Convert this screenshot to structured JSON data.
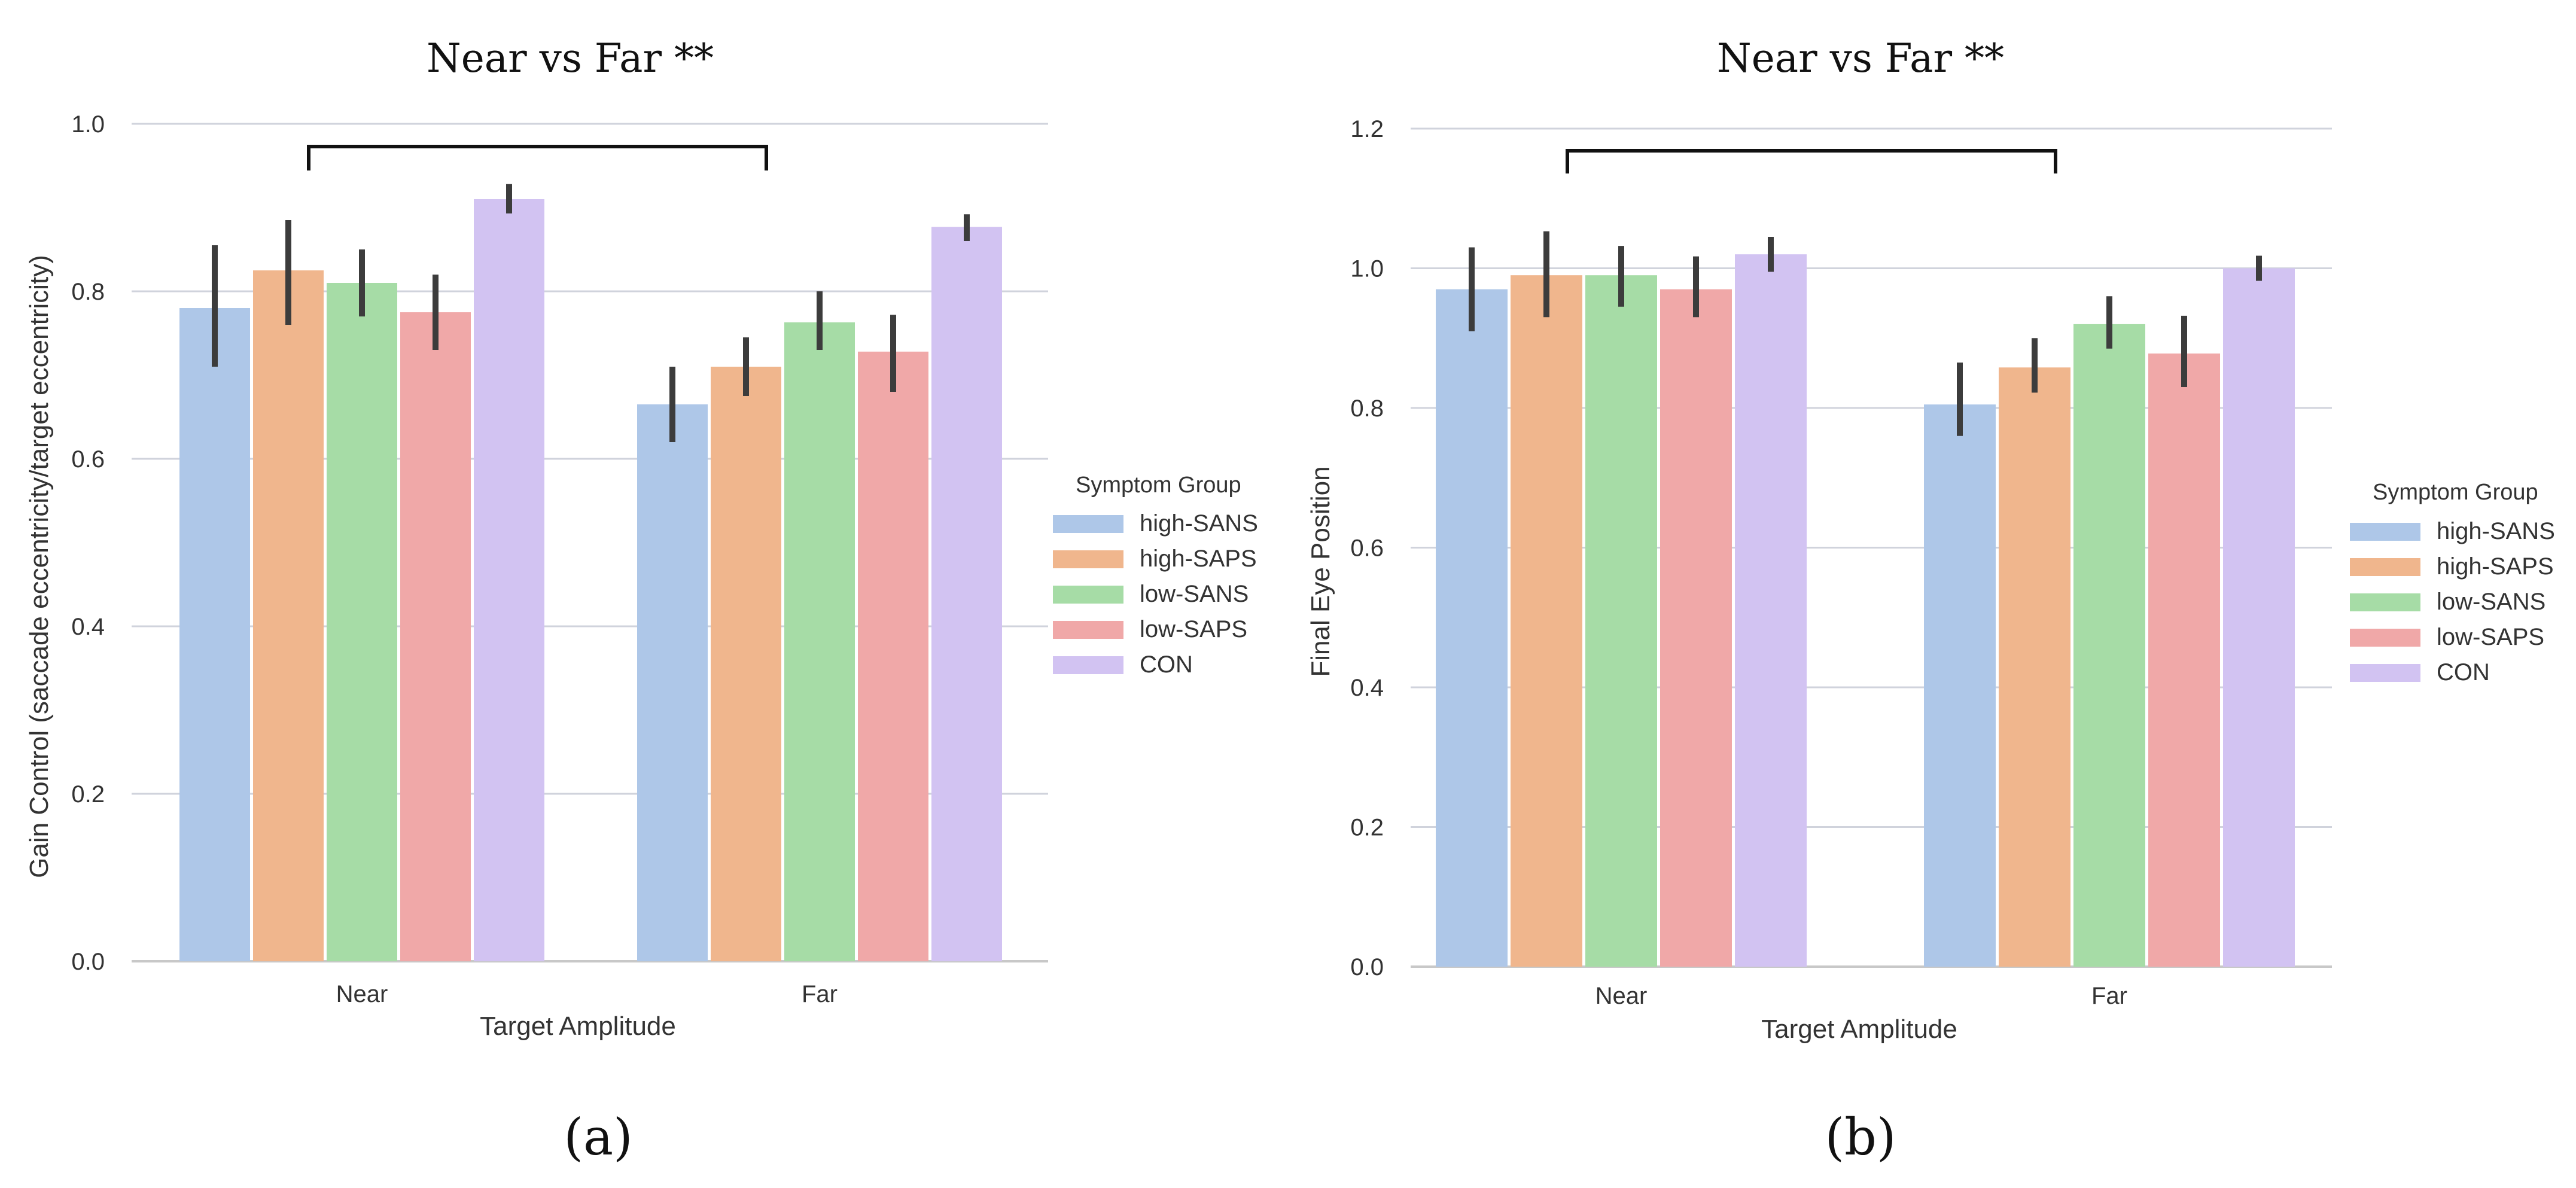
{
  "chart_data": [
    {
      "type": "bar",
      "title": "Near  vs Far **",
      "caption": "(a)",
      "xlabel": "Target Amplitude",
      "ylabel": "Gain Control (saccade eccentricity/target eccentricity)",
      "ylim": [
        0,
        1.0
      ],
      "yticks": [
        "0.0",
        "0.2",
        "0.4",
        "0.6",
        "0.8",
        "1.0"
      ],
      "ytick_values": [
        0,
        0.2,
        0.4,
        0.6,
        0.8,
        1.0
      ],
      "grid": true,
      "categories": [
        "Near",
        "Far"
      ],
      "legend_title": "Symptom Group",
      "legend_position": "right",
      "significance_bracket": [
        "Near",
        "Far"
      ],
      "series": [
        {
          "name": "high-SANS",
          "color": "#aec7e8",
          "values": [
            0.78,
            0.665
          ],
          "ci": [
            [
              0.71,
              0.855
            ],
            [
              0.62,
              0.71
            ]
          ]
        },
        {
          "name": "high-SAPS",
          "color": "#f0b68d",
          "values": [
            0.825,
            0.71
          ],
          "ci": [
            [
              0.76,
              0.885
            ],
            [
              0.675,
              0.745
            ]
          ]
        },
        {
          "name": "low-SANS",
          "color": "#a6dca6",
          "values": [
            0.81,
            0.763
          ],
          "ci": [
            [
              0.77,
              0.85
            ],
            [
              0.73,
              0.8
            ]
          ]
        },
        {
          "name": "low-SAPS",
          "color": "#f0a8a8",
          "values": [
            0.775,
            0.728
          ],
          "ci": [
            [
              0.73,
              0.82
            ],
            [
              0.68,
              0.772
            ]
          ]
        },
        {
          "name": "CON",
          "color": "#d2c3f2",
          "values": [
            0.91,
            0.877
          ],
          "ci": [
            [
              0.893,
              0.928
            ],
            [
              0.86,
              0.892
            ]
          ]
        }
      ]
    },
    {
      "type": "bar",
      "title": "Near  vs Far **",
      "caption": "(b)",
      "xlabel": "Target Amplitude",
      "ylabel": "Final Eye Position",
      "ylim": [
        0,
        1.2
      ],
      "yticks": [
        "0.0",
        "0.2",
        "0.4",
        "0.6",
        "0.8",
        "1.0",
        "1.2"
      ],
      "ytick_values": [
        0,
        0.2,
        0.4,
        0.6,
        0.8,
        1.0,
        1.2
      ],
      "grid": true,
      "categories": [
        "Near",
        "Far"
      ],
      "legend_title": "Symptom Group",
      "legend_position": "right",
      "significance_bracket": [
        "Near",
        "Far"
      ],
      "series": [
        {
          "name": "high-SANS",
          "color": "#aec7e8",
          "values": [
            0.97,
            0.805
          ],
          "ci": [
            [
              0.91,
              1.03
            ],
            [
              0.76,
              0.865
            ]
          ]
        },
        {
          "name": "high-SAPS",
          "color": "#f0b68d",
          "values": [
            0.99,
            0.858
          ],
          "ci": [
            [
              0.93,
              1.053
            ],
            [
              0.822,
              0.9
            ]
          ]
        },
        {
          "name": "low-SANS",
          "color": "#a6dca6",
          "values": [
            0.99,
            0.92
          ],
          "ci": [
            [
              0.945,
              1.032
            ],
            [
              0.885,
              0.96
            ]
          ]
        },
        {
          "name": "low-SAPS",
          "color": "#f0a8a8",
          "values": [
            0.97,
            0.878
          ],
          "ci": [
            [
              0.93,
              1.017
            ],
            [
              0.83,
              0.932
            ]
          ]
        },
        {
          "name": "CON",
          "color": "#d2c3f2",
          "values": [
            1.02,
            1.0
          ],
          "ci": [
            [
              0.995,
              1.045
            ],
            [
              0.982,
              1.018
            ]
          ]
        }
      ]
    }
  ]
}
